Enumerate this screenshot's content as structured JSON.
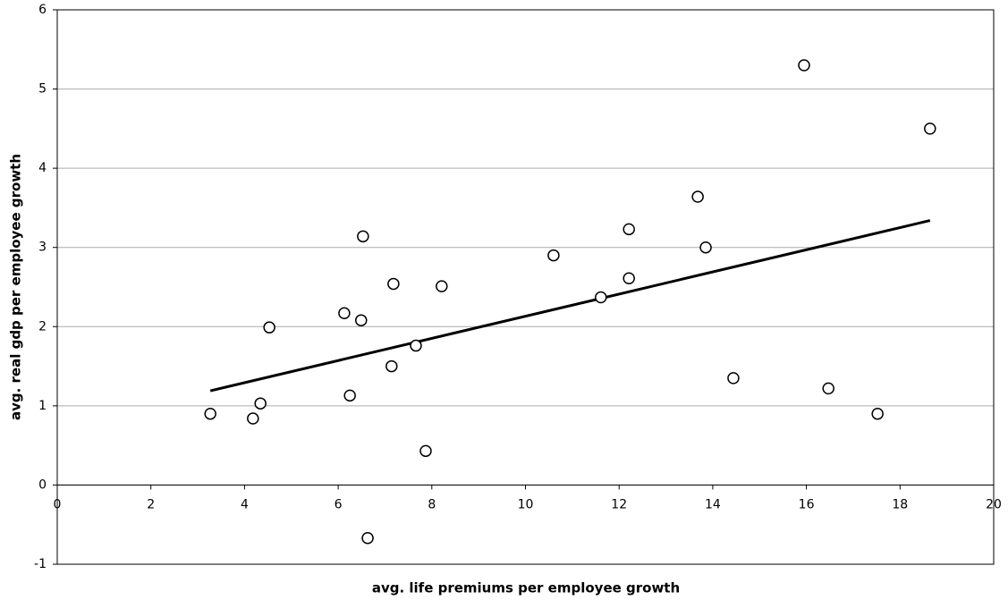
{
  "chart_data": {
    "type": "scatter",
    "x_label": "avg. life premiums per employee growth",
    "y_label": "avg. real gdp per employee growth",
    "x": [
      3.27,
      4.18,
      4.34,
      4.53,
      6.13,
      6.49,
      6.53,
      6.25,
      6.63,
      7.18,
      7.14,
      7.66,
      7.87,
      8.21,
      10.6,
      11.61,
      12.21,
      12.21,
      13.68,
      13.85,
      14.44,
      15.95,
      16.47,
      17.52,
      18.64
    ],
    "y": [
      0.9,
      0.84,
      1.03,
      1.99,
      2.17,
      2.08,
      3.14,
      1.13,
      -0.67,
      2.54,
      1.5,
      1.76,
      0.43,
      2.51,
      2.9,
      2.37,
      3.23,
      2.61,
      3.64,
      3.0,
      1.35,
      5.3,
      1.22,
      0.9,
      4.5
    ],
    "trendline": {
      "x": [
        3.27,
        18.64
      ],
      "y": [
        1.19,
        3.34
      ]
    },
    "xlim": [
      0,
      20
    ],
    "ylim": [
      -1,
      6
    ],
    "xticks": [
      0,
      2,
      4,
      6,
      8,
      10,
      12,
      14,
      16,
      18,
      20
    ],
    "yticks": [
      -1,
      0,
      1,
      2,
      3,
      4,
      5,
      6
    ],
    "grid": true
  }
}
